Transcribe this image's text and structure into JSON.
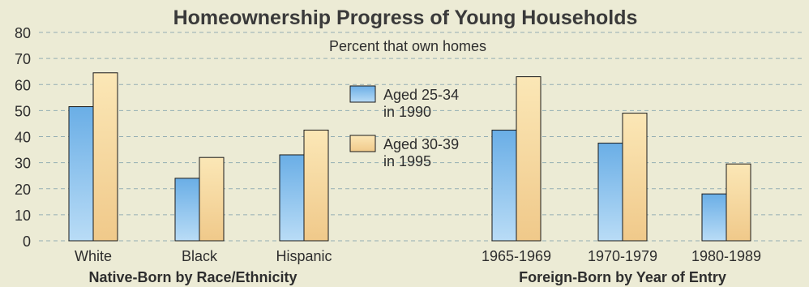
{
  "chart_data": {
    "type": "bar",
    "title": "Homeownership Progress of Young Households",
    "subtitle": "Percent that own homes",
    "ylim": [
      0,
      80
    ],
    "yticks": [
      0,
      10,
      20,
      30,
      40,
      50,
      60,
      70,
      80
    ],
    "grid": true,
    "legend_position": "center",
    "categories": [
      "White",
      "Black",
      "Hispanic",
      "1965-1969",
      "1970-1979",
      "1980-1989"
    ],
    "groups": [
      {
        "label": "Native-Born by Race/Ethnicity",
        "categories": [
          "White",
          "Black",
          "Hispanic"
        ]
      },
      {
        "label": "Foreign-Born by Year of Entry",
        "categories": [
          "1965-1969",
          "1970-1979",
          "1980-1989"
        ]
      }
    ],
    "series": [
      {
        "name_lines": [
          "Aged 25-34",
          "in 1990"
        ],
        "color": "#7fb9e8",
        "values": [
          51.5,
          24,
          33,
          42.5,
          37.5,
          18
        ]
      },
      {
        "name_lines": [
          "Aged 30-39",
          "in 1995"
        ],
        "color": "#f6d9a0",
        "values": [
          64.5,
          32,
          42.5,
          63,
          49,
          29.5
        ]
      }
    ]
  }
}
